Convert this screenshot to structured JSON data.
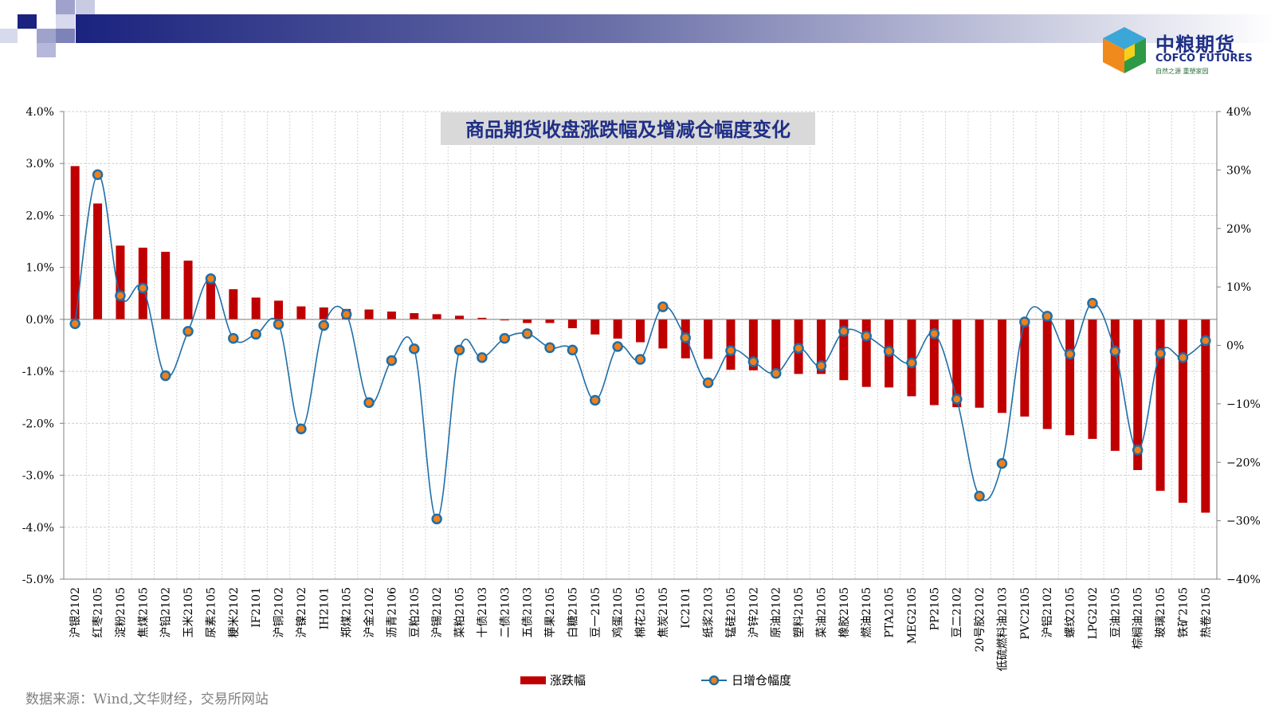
{
  "logo": {
    "name_cn": "中粮期货",
    "name_en": "COFCO FUTURES",
    "tagline": "自然之源  重塑家园"
  },
  "source_note": "数据来源：Wind,文华财经，交易所网站",
  "chart_data": {
    "type": "bar+line",
    "title": "商品期货收盘涨跌幅及增减仓幅度变化",
    "categories": [
      "沪银2102",
      "红枣2105",
      "淀粉2105",
      "焦煤2105",
      "沪铅2102",
      "玉米2105",
      "尿素2105",
      "粳米2102",
      "IF2101",
      "沪铜2102",
      "沪镍2102",
      "IH2101",
      "郑煤2105",
      "沪金2102",
      "沥青2106",
      "豆粕2105",
      "沪锡2102",
      "菜粕2105",
      "十债2103",
      "二债2103",
      "五债2103",
      "苹果2105",
      "白糖2105",
      "豆一2105",
      "鸡蛋2105",
      "棉花2105",
      "焦炭2105",
      "IC2101",
      "纸浆2103",
      "锰硅2105",
      "沪锌2102",
      "原油2102",
      "塑料2105",
      "菜油2105",
      "橡胶2105",
      "燃油2105",
      "PTA2105",
      "MEG2105",
      "PP2105",
      "豆二2102",
      "20号胶2102",
      "低硫燃料油2103",
      "PVC2105",
      "沪铝2102",
      "螺纹2105",
      "LPG2102",
      "豆油2105",
      "棕榈油2105",
      "玻璃2105",
      "铁矿2105",
      "热卷2105"
    ],
    "series": [
      {
        "name": "涨跌幅",
        "type": "bar",
        "axis": "left",
        "color": "#c00000",
        "values": [
          2.95,
          2.23,
          1.42,
          1.38,
          1.3,
          1.13,
          0.82,
          0.58,
          0.42,
          0.36,
          0.25,
          0.23,
          0.2,
          0.19,
          0.15,
          0.12,
          0.1,
          0.07,
          0.03,
          -0.02,
          -0.07,
          -0.07,
          -0.17,
          -0.29,
          -0.37,
          -0.44,
          -0.56,
          -0.75,
          -0.76,
          -0.97,
          -0.98,
          -1.0,
          -1.05,
          -1.05,
          -1.17,
          -1.3,
          -1.31,
          -1.48,
          -1.65,
          -1.69,
          -1.7,
          -1.8,
          -1.87,
          -2.11,
          -2.23,
          -2.3,
          -2.53,
          -2.9,
          -3.3,
          -3.53,
          -3.72
        ]
      },
      {
        "name": "日增仓幅度",
        "type": "line",
        "axis": "right",
        "color": "#1f6fa8",
        "marker_color": "#f07f19",
        "values": [
          3.7,
          29.2,
          8.5,
          9.8,
          -5.2,
          2.4,
          11.4,
          1.2,
          1.9,
          3.6,
          -14.3,
          3.4,
          5.3,
          -9.8,
          -2.6,
          -0.6,
          -29.7,
          -0.8,
          -2.1,
          1.2,
          2.0,
          -0.4,
          -0.8,
          -9.4,
          -0.2,
          -2.4,
          6.6,
          1.3,
          -6.4,
          -0.9,
          -2.8,
          -4.8,
          -0.5,
          -3.5,
          2.4,
          1.6,
          -1.0,
          -3.0,
          2.0,
          -9.2,
          -25.8,
          -20.2,
          4.0,
          5.0,
          -1.5,
          7.2,
          -1.0,
          -17.9,
          -1.4,
          -2.1,
          0.8
        ]
      }
    ],
    "y_left": {
      "min": -5,
      "max": 4,
      "step": 1,
      "format": "percent1"
    },
    "y_right": {
      "min": -40,
      "max": 40,
      "step": 10,
      "format": "percent0"
    },
    "grid": true,
    "legend_position": "bottom-center"
  }
}
